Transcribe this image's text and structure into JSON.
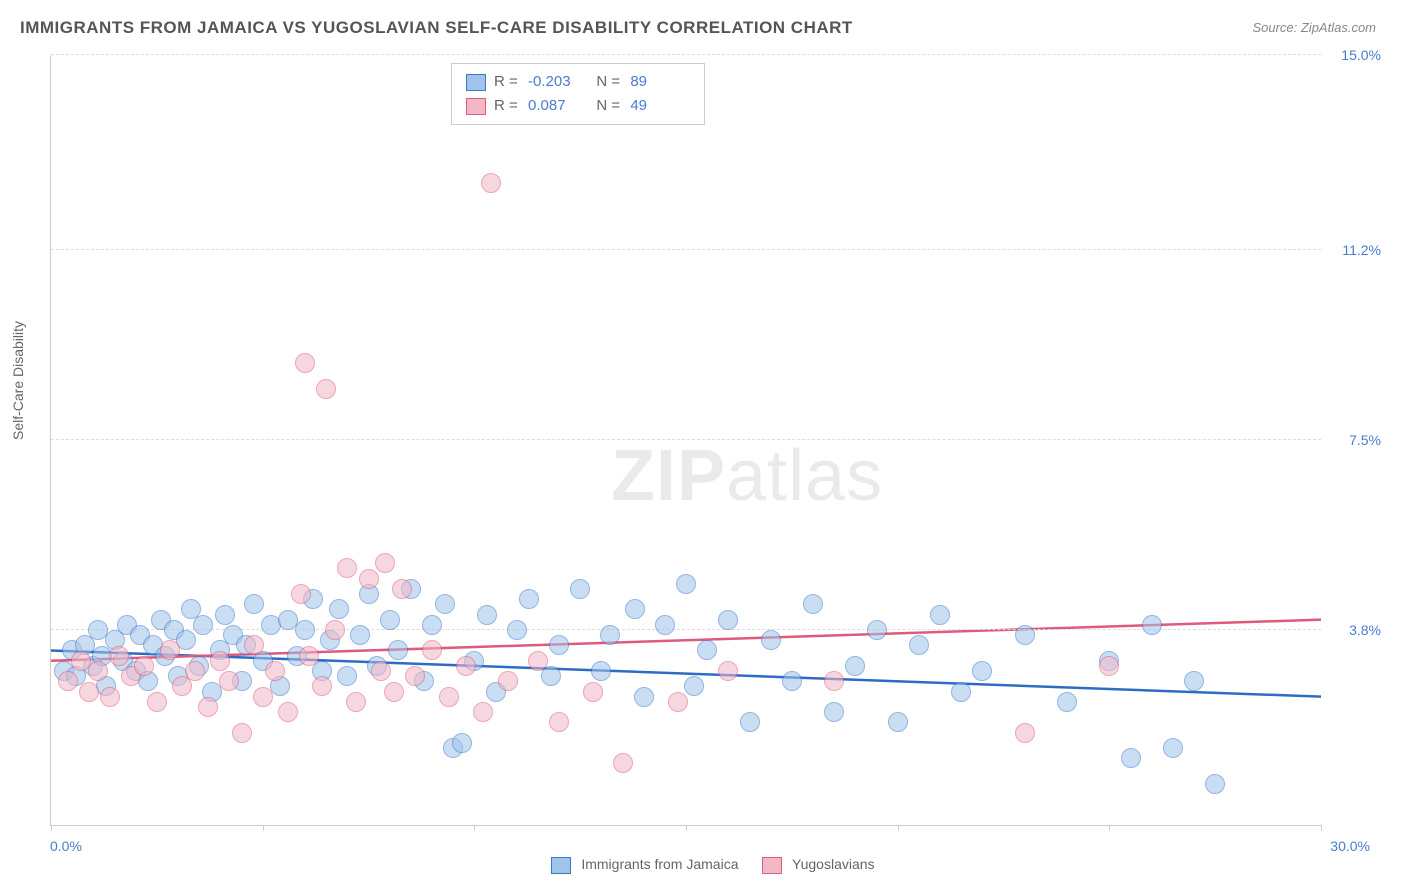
{
  "title": "IMMIGRANTS FROM JAMAICA VS YUGOSLAVIAN SELF-CARE DISABILITY CORRELATION CHART",
  "source": "Source: ZipAtlas.com",
  "ylabel": "Self-Care Disability",
  "watermark_bold": "ZIP",
  "watermark_light": "atlas",
  "chart": {
    "type": "scatter",
    "xlim": [
      0,
      30
    ],
    "ylim": [
      0,
      15
    ],
    "ytick_values": [
      3.8,
      7.5,
      11.2,
      15.0
    ],
    "ytick_labels": [
      "3.8%",
      "7.5%",
      "11.2%",
      "15.0%"
    ],
    "xtick_values": [
      0,
      5,
      10,
      15,
      20,
      25,
      30
    ],
    "xlabel_min": "0.0%",
    "xlabel_max": "30.0%",
    "background_color": "#ffffff",
    "grid_color": "#dddddd",
    "label_color": "#4a7bd0",
    "marker_radius": 9,
    "marker_opacity": 0.55,
    "series": [
      {
        "name": "Immigrants from Jamaica",
        "fill": "#9fc4ea",
        "stroke": "#3b78c9",
        "line_color": "#2e6bc5",
        "R": "-0.203",
        "N": "89",
        "regression": {
          "y_at_x0": 3.4,
          "y_at_xmax": 2.5
        },
        "points": [
          [
            0.3,
            3.0
          ],
          [
            0.5,
            3.4
          ],
          [
            0.6,
            2.9
          ],
          [
            0.8,
            3.5
          ],
          [
            1.0,
            3.1
          ],
          [
            1.1,
            3.8
          ],
          [
            1.2,
            3.3
          ],
          [
            1.3,
            2.7
          ],
          [
            1.5,
            3.6
          ],
          [
            1.7,
            3.2
          ],
          [
            1.8,
            3.9
          ],
          [
            2.0,
            3.0
          ],
          [
            2.1,
            3.7
          ],
          [
            2.3,
            2.8
          ],
          [
            2.4,
            3.5
          ],
          [
            2.6,
            4.0
          ],
          [
            2.7,
            3.3
          ],
          [
            2.9,
            3.8
          ],
          [
            3.0,
            2.9
          ],
          [
            3.2,
            3.6
          ],
          [
            3.3,
            4.2
          ],
          [
            3.5,
            3.1
          ],
          [
            3.6,
            3.9
          ],
          [
            3.8,
            2.6
          ],
          [
            4.0,
            3.4
          ],
          [
            4.1,
            4.1
          ],
          [
            4.3,
            3.7
          ],
          [
            4.5,
            2.8
          ],
          [
            4.6,
            3.5
          ],
          [
            4.8,
            4.3
          ],
          [
            5.0,
            3.2
          ],
          [
            5.2,
            3.9
          ],
          [
            5.4,
            2.7
          ],
          [
            5.6,
            4.0
          ],
          [
            5.8,
            3.3
          ],
          [
            6.0,
            3.8
          ],
          [
            6.2,
            4.4
          ],
          [
            6.4,
            3.0
          ],
          [
            6.6,
            3.6
          ],
          [
            6.8,
            4.2
          ],
          [
            7.0,
            2.9
          ],
          [
            7.3,
            3.7
          ],
          [
            7.5,
            4.5
          ],
          [
            7.7,
            3.1
          ],
          [
            8.0,
            4.0
          ],
          [
            8.2,
            3.4
          ],
          [
            8.5,
            4.6
          ],
          [
            8.8,
            2.8
          ],
          [
            9.0,
            3.9
          ],
          [
            9.3,
            4.3
          ],
          [
            9.5,
            1.5
          ],
          [
            9.7,
            1.6
          ],
          [
            10.0,
            3.2
          ],
          [
            10.3,
            4.1
          ],
          [
            10.5,
            2.6
          ],
          [
            11.0,
            3.8
          ],
          [
            11.3,
            4.4
          ],
          [
            11.8,
            2.9
          ],
          [
            12.0,
            3.5
          ],
          [
            12.5,
            4.6
          ],
          [
            13.0,
            3.0
          ],
          [
            13.2,
            3.7
          ],
          [
            13.8,
            4.2
          ],
          [
            14.0,
            2.5
          ],
          [
            14.5,
            3.9
          ],
          [
            15.0,
            4.7
          ],
          [
            15.2,
            2.7
          ],
          [
            15.5,
            3.4
          ],
          [
            16.0,
            4.0
          ],
          [
            16.5,
            2.0
          ],
          [
            17.0,
            3.6
          ],
          [
            17.5,
            2.8
          ],
          [
            18.0,
            4.3
          ],
          [
            18.5,
            2.2
          ],
          [
            19.0,
            3.1
          ],
          [
            19.5,
            3.8
          ],
          [
            20.0,
            2.0
          ],
          [
            20.5,
            3.5
          ],
          [
            21.0,
            4.1
          ],
          [
            21.5,
            2.6
          ],
          [
            22.0,
            3.0
          ],
          [
            23.0,
            3.7
          ],
          [
            24.0,
            2.4
          ],
          [
            25.0,
            3.2
          ],
          [
            25.5,
            1.3
          ],
          [
            26.0,
            3.9
          ],
          [
            26.5,
            1.5
          ],
          [
            27.0,
            2.8
          ],
          [
            27.5,
            0.8
          ]
        ]
      },
      {
        "name": "Yugoslavians",
        "fill": "#f2b8c6",
        "stroke": "#e05a7c",
        "line_color": "#e05a7c",
        "R": "0.087",
        "N": "49",
        "regression": {
          "y_at_x0": 3.2,
          "y_at_xmax": 4.0
        },
        "points": [
          [
            0.4,
            2.8
          ],
          [
            0.7,
            3.2
          ],
          [
            0.9,
            2.6
          ],
          [
            1.1,
            3.0
          ],
          [
            1.4,
            2.5
          ],
          [
            1.6,
            3.3
          ],
          [
            1.9,
            2.9
          ],
          [
            2.2,
            3.1
          ],
          [
            2.5,
            2.4
          ],
          [
            2.8,
            3.4
          ],
          [
            3.1,
            2.7
          ],
          [
            3.4,
            3.0
          ],
          [
            3.7,
            2.3
          ],
          [
            4.0,
            3.2
          ],
          [
            4.2,
            2.8
          ],
          [
            4.5,
            1.8
          ],
          [
            4.8,
            3.5
          ],
          [
            5.0,
            2.5
          ],
          [
            5.3,
            3.0
          ],
          [
            5.6,
            2.2
          ],
          [
            5.9,
            4.5
          ],
          [
            6.0,
            9.0
          ],
          [
            6.1,
            3.3
          ],
          [
            6.4,
            2.7
          ],
          [
            6.5,
            8.5
          ],
          [
            6.7,
            3.8
          ],
          [
            7.0,
            5.0
          ],
          [
            7.2,
            2.4
          ],
          [
            7.5,
            4.8
          ],
          [
            7.8,
            3.0
          ],
          [
            7.9,
            5.1
          ],
          [
            8.1,
            2.6
          ],
          [
            8.3,
            4.6
          ],
          [
            8.6,
            2.9
          ],
          [
            9.0,
            3.4
          ],
          [
            9.4,
            2.5
          ],
          [
            9.8,
            3.1
          ],
          [
            10.2,
            2.2
          ],
          [
            10.4,
            12.5
          ],
          [
            10.8,
            2.8
          ],
          [
            11.5,
            3.2
          ],
          [
            12.0,
            2.0
          ],
          [
            12.8,
            2.6
          ],
          [
            13.5,
            1.2
          ],
          [
            14.8,
            2.4
          ],
          [
            16.0,
            3.0
          ],
          [
            18.5,
            2.8
          ],
          [
            23.0,
            1.8
          ],
          [
            25.0,
            3.1
          ]
        ]
      }
    ]
  },
  "stats_labels": {
    "R": "R =",
    "N": "N ="
  },
  "bottom_legend": {
    "series1": "Immigrants from Jamaica",
    "series2": "Yugoslavians"
  }
}
